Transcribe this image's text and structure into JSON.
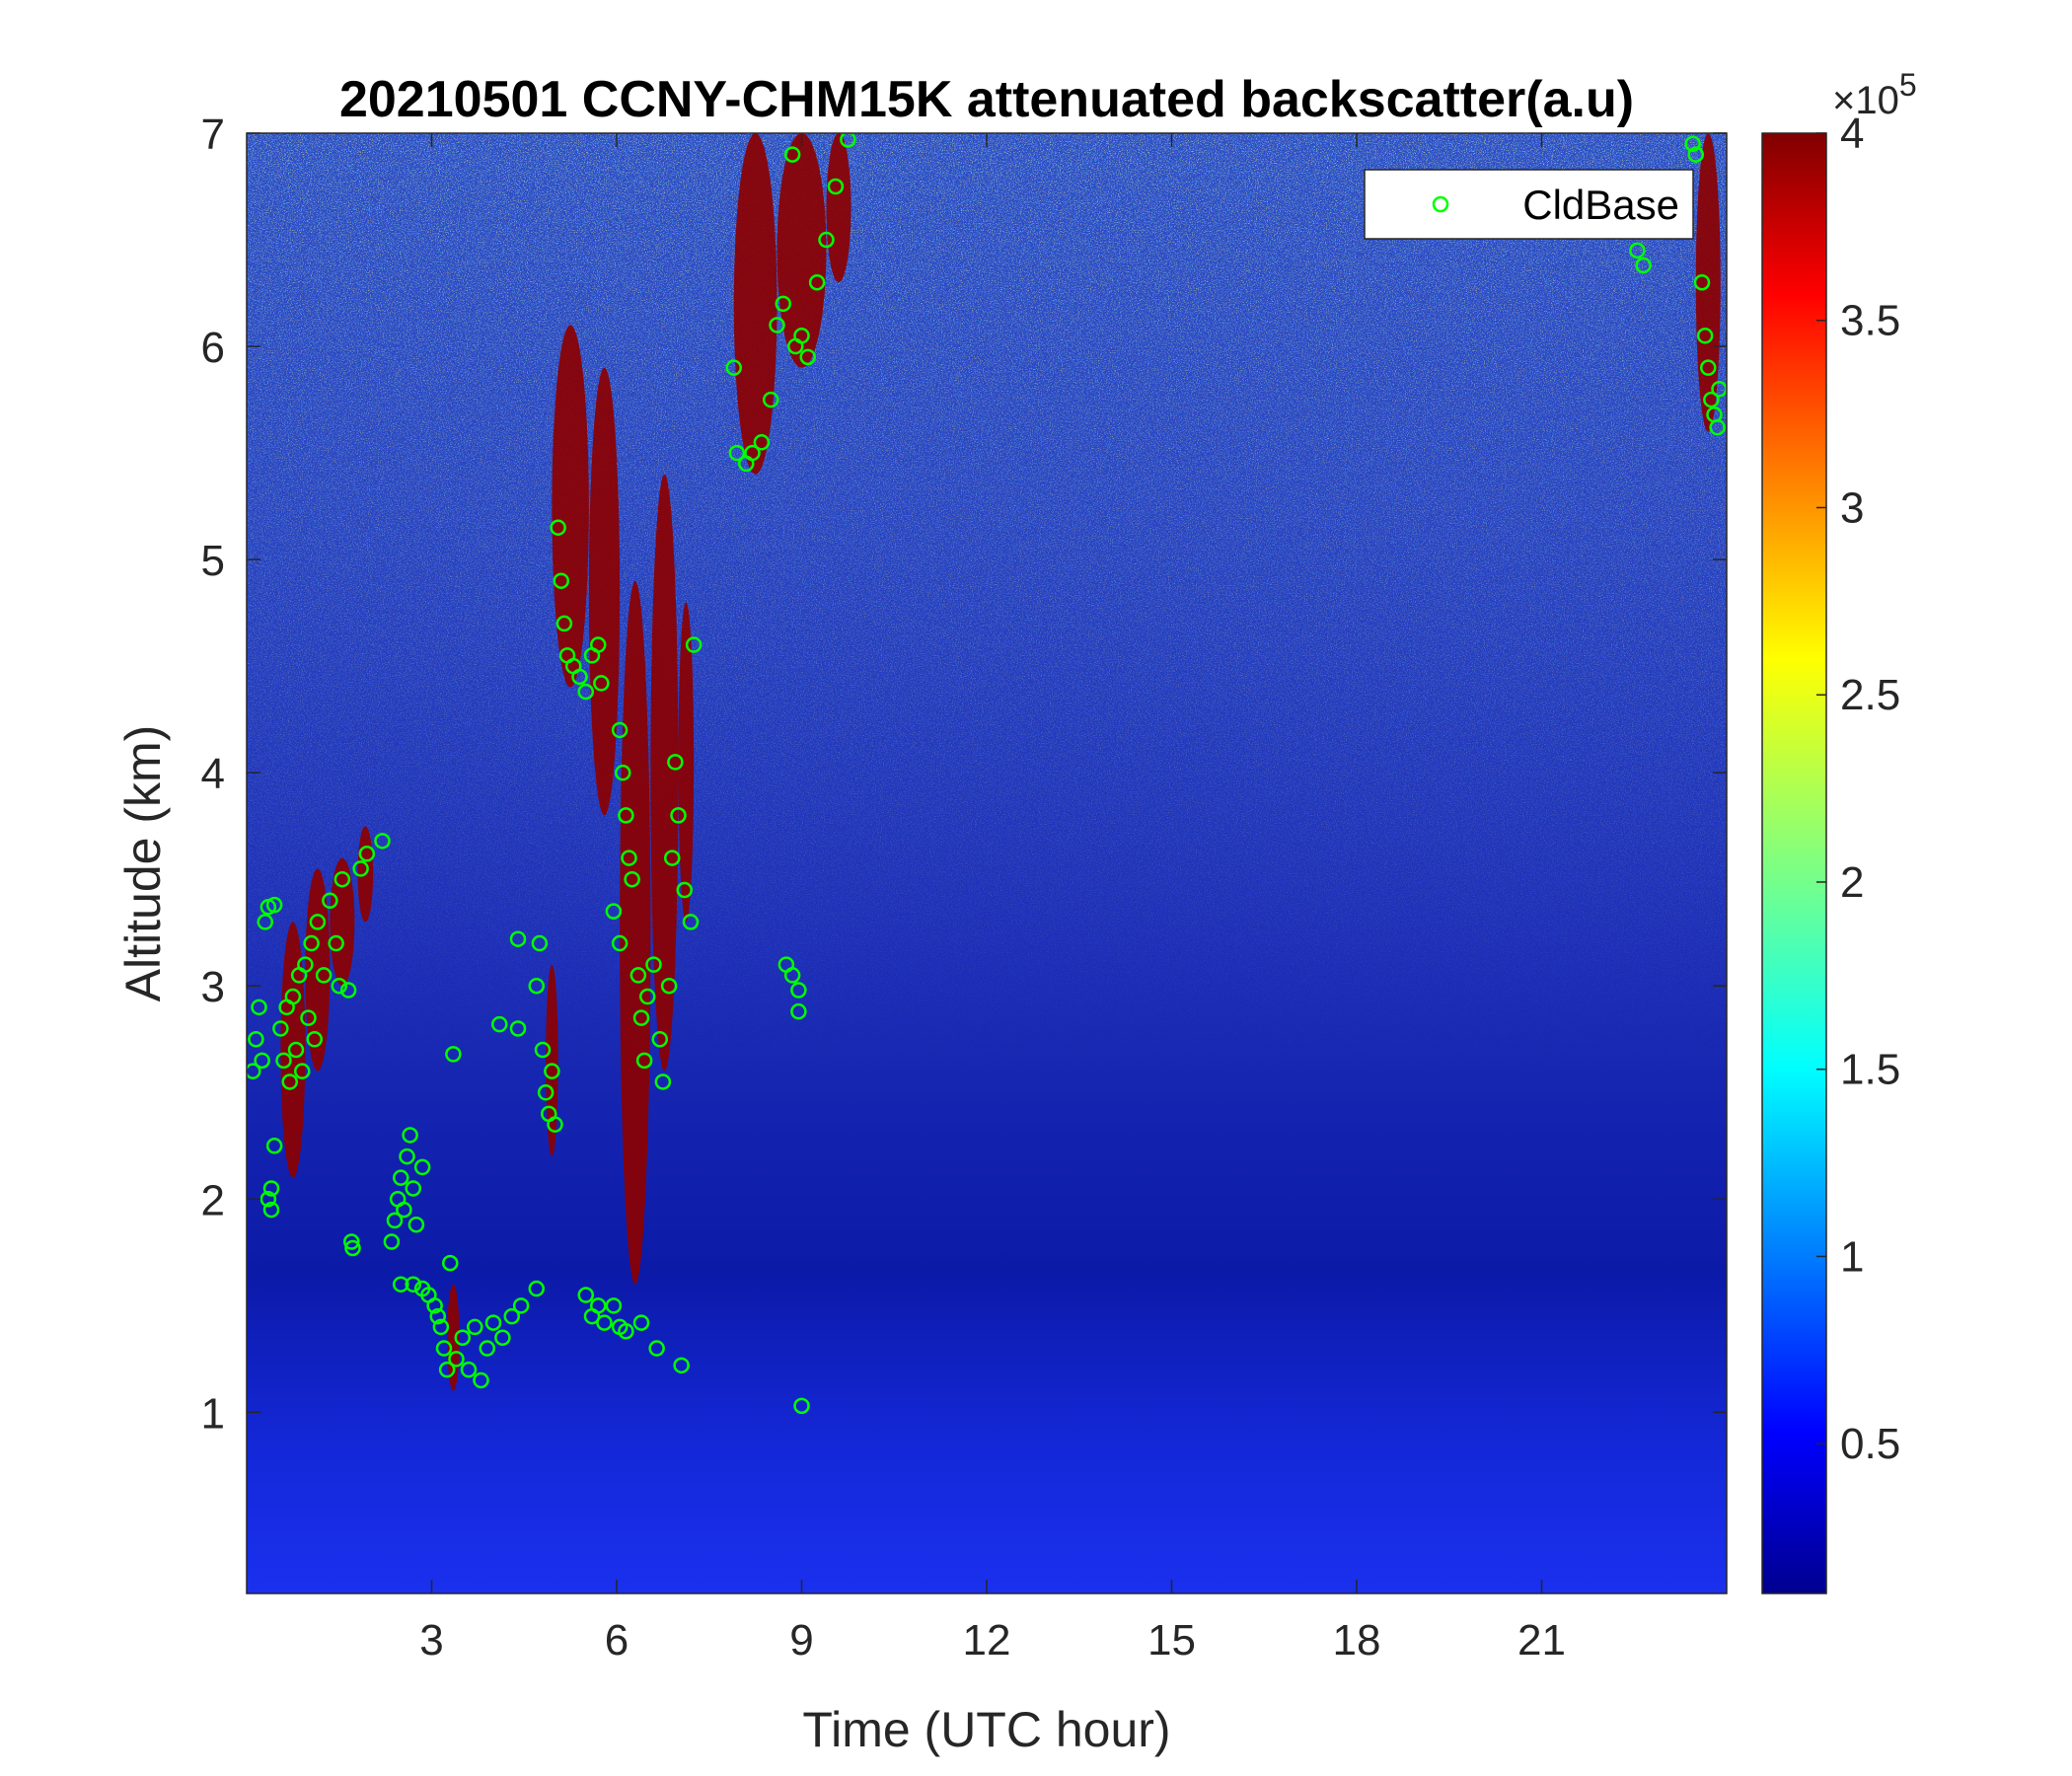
{
  "chart_data": {
    "type": "heatmap",
    "title": "20210501 CCNY-CHM15K attenuated backscatter(a.u)",
    "xlabel": "Time (UTC hour)",
    "ylabel": "Altitude (km)",
    "xlim": [
      0,
      24
    ],
    "ylim": [
      0.15,
      7
    ],
    "x_ticks": [
      3,
      6,
      9,
      12,
      15,
      18,
      21
    ],
    "x_tick_labels": [
      "3",
      "6",
      "9",
      "12",
      "15",
      "18",
      "21"
    ],
    "y_ticks": [
      1,
      2,
      3,
      4,
      5,
      6,
      7
    ],
    "y_tick_labels": [
      "1",
      "2",
      "3",
      "4",
      "5",
      "6",
      "7"
    ],
    "colormap": "jet",
    "colorbar": {
      "clim": [
        0.1,
        4
      ],
      "ticks": [
        0.5,
        1,
        1.5,
        2,
        2.5,
        3,
        3.5,
        4
      ],
      "tick_labels": [
        "0.5",
        "1",
        "1.5",
        "2",
        "2.5",
        "3",
        "3.5",
        "4"
      ],
      "multiplier_prefix": "×10",
      "multiplier_exponent": "5"
    },
    "legend": {
      "position": "top-right",
      "entries": [
        "CldBase"
      ]
    },
    "marker_color": "#00ff00",
    "cloud_regions": [
      {
        "t0": 0.55,
        "t1": 0.95,
        "z0": 2.1,
        "z1": 3.3
      },
      {
        "t0": 0.95,
        "t1": 1.35,
        "z0": 2.6,
        "z1": 3.55
      },
      {
        "t0": 1.35,
        "t1": 1.75,
        "z0": 3.0,
        "z1": 3.6
      },
      {
        "t0": 1.8,
        "t1": 2.05,
        "z0": 3.3,
        "z1": 3.75
      },
      {
        "t0": 3.25,
        "t1": 3.45,
        "z0": 1.1,
        "z1": 1.6
      },
      {
        "t0": 4.85,
        "t1": 5.05,
        "z0": 2.2,
        "z1": 3.1
      },
      {
        "t0": 4.95,
        "t1": 5.55,
        "z0": 4.4,
        "z1": 6.1
      },
      {
        "t0": 5.55,
        "t1": 6.05,
        "z0": 3.8,
        "z1": 5.9
      },
      {
        "t0": 6.05,
        "t1": 6.55,
        "z0": 1.6,
        "z1": 4.9
      },
      {
        "t0": 6.55,
        "t1": 7.0,
        "z0": 2.6,
        "z1": 5.4
      },
      {
        "t0": 7.0,
        "t1": 7.25,
        "z0": 3.3,
        "z1": 4.8
      },
      {
        "t0": 7.9,
        "t1": 8.6,
        "z0": 5.4,
        "z1": 7.0
      },
      {
        "t0": 8.6,
        "t1": 9.4,
        "z0": 5.9,
        "z1": 7.0
      },
      {
        "t0": 9.4,
        "t1": 9.8,
        "z0": 6.3,
        "z1": 7.0
      },
      {
        "t0": 23.5,
        "t1": 23.9,
        "z0": 5.6,
        "z1": 7.0
      }
    ],
    "cloud_base_points": [
      {
        "t": 0.1,
        "z": 2.6
      },
      {
        "t": 0.15,
        "z": 2.75
      },
      {
        "t": 0.2,
        "z": 2.9
      },
      {
        "t": 0.25,
        "z": 2.65
      },
      {
        "t": 0.3,
        "z": 3.3
      },
      {
        "t": 0.35,
        "z": 3.37
      },
      {
        "t": 0.45,
        "z": 3.38
      },
      {
        "t": 0.35,
        "z": 2.0
      },
      {
        "t": 0.4,
        "z": 2.05
      },
      {
        "t": 0.45,
        "z": 2.25
      },
      {
        "t": 0.4,
        "z": 1.95
      },
      {
        "t": 0.55,
        "z": 2.8
      },
      {
        "t": 0.6,
        "z": 2.65
      },
      {
        "t": 0.65,
        "z": 2.9
      },
      {
        "t": 0.7,
        "z": 2.55
      },
      {
        "t": 0.75,
        "z": 2.95
      },
      {
        "t": 0.8,
        "z": 2.7
      },
      {
        "t": 0.85,
        "z": 3.05
      },
      {
        "t": 0.9,
        "z": 2.6
      },
      {
        "t": 0.95,
        "z": 3.1
      },
      {
        "t": 1.0,
        "z": 2.85
      },
      {
        "t": 1.05,
        "z": 3.2
      },
      {
        "t": 1.1,
        "z": 2.75
      },
      {
        "t": 1.15,
        "z": 3.3
      },
      {
        "t": 1.25,
        "z": 3.05
      },
      {
        "t": 1.35,
        "z": 3.4
      },
      {
        "t": 1.45,
        "z": 3.2
      },
      {
        "t": 1.55,
        "z": 3.5
      },
      {
        "t": 1.5,
        "z": 3.0
      },
      {
        "t": 1.65,
        "z": 2.98
      },
      {
        "t": 1.7,
        "z": 1.8
      },
      {
        "t": 1.72,
        "z": 1.77
      },
      {
        "t": 1.85,
        "z": 3.55
      },
      {
        "t": 1.95,
        "z": 3.62
      },
      {
        "t": 2.2,
        "z": 3.68
      },
      {
        "t": 2.35,
        "z": 1.8
      },
      {
        "t": 2.4,
        "z": 1.9
      },
      {
        "t": 2.45,
        "z": 2.0
      },
      {
        "t": 2.5,
        "z": 2.1
      },
      {
        "t": 2.55,
        "z": 1.95
      },
      {
        "t": 2.6,
        "z": 2.2
      },
      {
        "t": 2.65,
        "z": 2.3
      },
      {
        "t": 2.7,
        "z": 2.05
      },
      {
        "t": 2.75,
        "z": 1.88
      },
      {
        "t": 2.85,
        "z": 2.15
      },
      {
        "t": 2.5,
        "z": 1.6
      },
      {
        "t": 2.7,
        "z": 1.6
      },
      {
        "t": 2.85,
        "z": 1.58
      },
      {
        "t": 2.95,
        "z": 1.55
      },
      {
        "t": 3.05,
        "z": 1.5
      },
      {
        "t": 3.1,
        "z": 1.45
      },
      {
        "t": 3.15,
        "z": 1.4
      },
      {
        "t": 3.2,
        "z": 1.3
      },
      {
        "t": 3.25,
        "z": 1.2
      },
      {
        "t": 3.3,
        "z": 1.7
      },
      {
        "t": 3.35,
        "z": 2.68
      },
      {
        "t": 3.4,
        "z": 1.25
      },
      {
        "t": 3.5,
        "z": 1.35
      },
      {
        "t": 3.6,
        "z": 1.2
      },
      {
        "t": 3.7,
        "z": 1.4
      },
      {
        "t": 3.8,
        "z": 1.15
      },
      {
        "t": 3.9,
        "z": 1.3
      },
      {
        "t": 4.0,
        "z": 1.42
      },
      {
        "t": 4.15,
        "z": 1.35
      },
      {
        "t": 4.3,
        "z": 1.45
      },
      {
        "t": 4.45,
        "z": 1.5
      },
      {
        "t": 4.7,
        "z": 1.58
      },
      {
        "t": 4.1,
        "z": 2.82
      },
      {
        "t": 4.4,
        "z": 2.8
      },
      {
        "t": 4.4,
        "z": 3.22
      },
      {
        "t": 4.7,
        "z": 3.0
      },
      {
        "t": 4.75,
        "z": 3.2
      },
      {
        "t": 4.8,
        "z": 2.7
      },
      {
        "t": 4.85,
        "z": 2.5
      },
      {
        "t": 4.9,
        "z": 2.4
      },
      {
        "t": 4.95,
        "z": 2.6
      },
      {
        "t": 5.0,
        "z": 2.35
      },
      {
        "t": 5.05,
        "z": 5.15
      },
      {
        "t": 5.1,
        "z": 4.9
      },
      {
        "t": 5.15,
        "z": 4.7
      },
      {
        "t": 5.2,
        "z": 4.55
      },
      {
        "t": 5.3,
        "z": 4.5
      },
      {
        "t": 5.4,
        "z": 4.45
      },
      {
        "t": 5.5,
        "z": 4.38
      },
      {
        "t": 5.6,
        "z": 4.55
      },
      {
        "t": 5.7,
        "z": 4.6
      },
      {
        "t": 5.75,
        "z": 4.42
      },
      {
        "t": 5.5,
        "z": 1.55
      },
      {
        "t": 5.6,
        "z": 1.45
      },
      {
        "t": 5.7,
        "z": 1.5
      },
      {
        "t": 5.8,
        "z": 1.42
      },
      {
        "t": 5.95,
        "z": 1.5
      },
      {
        "t": 6.05,
        "z": 1.4
      },
      {
        "t": 6.15,
        "z": 1.38
      },
      {
        "t": 6.4,
        "z": 1.42
      },
      {
        "t": 6.65,
        "z": 1.3
      },
      {
        "t": 7.05,
        "z": 1.22
      },
      {
        "t": 5.95,
        "z": 3.35
      },
      {
        "t": 6.05,
        "z": 3.2
      },
      {
        "t": 6.05,
        "z": 4.2
      },
      {
        "t": 6.1,
        "z": 4.0
      },
      {
        "t": 6.15,
        "z": 3.8
      },
      {
        "t": 6.2,
        "z": 3.6
      },
      {
        "t": 6.25,
        "z": 3.5
      },
      {
        "t": 6.35,
        "z": 3.05
      },
      {
        "t": 6.4,
        "z": 2.85
      },
      {
        "t": 6.45,
        "z": 2.65
      },
      {
        "t": 6.5,
        "z": 2.95
      },
      {
        "t": 6.6,
        "z": 3.1
      },
      {
        "t": 6.7,
        "z": 2.75
      },
      {
        "t": 6.75,
        "z": 2.55
      },
      {
        "t": 6.85,
        "z": 3.0
      },
      {
        "t": 6.9,
        "z": 3.6
      },
      {
        "t": 6.95,
        "z": 4.05
      },
      {
        "t": 7.0,
        "z": 3.8
      },
      {
        "t": 7.1,
        "z": 3.45
      },
      {
        "t": 7.2,
        "z": 3.3
      },
      {
        "t": 7.25,
        "z": 4.6
      },
      {
        "t": 7.9,
        "z": 5.9
      },
      {
        "t": 7.95,
        "z": 5.5
      },
      {
        "t": 8.1,
        "z": 5.45
      },
      {
        "t": 8.2,
        "z": 5.5
      },
      {
        "t": 8.35,
        "z": 5.55
      },
      {
        "t": 8.5,
        "z": 5.75
      },
      {
        "t": 8.6,
        "z": 6.1
      },
      {
        "t": 8.7,
        "z": 6.2
      },
      {
        "t": 8.85,
        "z": 6.9
      },
      {
        "t": 8.9,
        "z": 6.0
      },
      {
        "t": 9.0,
        "z": 6.05
      },
      {
        "t": 9.1,
        "z": 5.95
      },
      {
        "t": 9.25,
        "z": 6.3
      },
      {
        "t": 9.4,
        "z": 6.5
      },
      {
        "t": 9.55,
        "z": 6.75
      },
      {
        "t": 9.75,
        "z": 6.97
      },
      {
        "t": 8.75,
        "z": 3.1
      },
      {
        "t": 8.85,
        "z": 3.05
      },
      {
        "t": 8.95,
        "z": 2.98
      },
      {
        "t": 8.95,
        "z": 2.88
      },
      {
        "t": 9.0,
        "z": 1.03
      },
      {
        "t": 22.55,
        "z": 6.45
      },
      {
        "t": 22.65,
        "z": 6.38
      },
      {
        "t": 23.45,
        "z": 6.95
      },
      {
        "t": 23.5,
        "z": 6.9
      },
      {
        "t": 23.6,
        "z": 6.3
      },
      {
        "t": 23.65,
        "z": 6.05
      },
      {
        "t": 23.7,
        "z": 5.9
      },
      {
        "t": 23.75,
        "z": 5.75
      },
      {
        "t": 23.8,
        "z": 5.68
      },
      {
        "t": 23.85,
        "z": 5.62
      },
      {
        "t": 23.88,
        "z": 5.8
      }
    ]
  }
}
